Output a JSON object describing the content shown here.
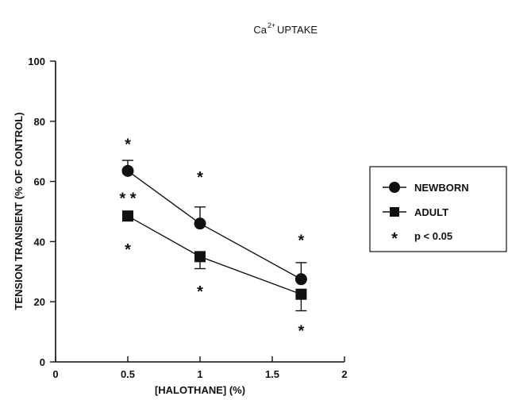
{
  "chart_data": {
    "type": "line",
    "title": "Ca²⁺UPTAKE",
    "title_base": "Ca",
    "title_sup": "2+",
    "title_rest": "UPTAKE",
    "xlabel": "[HALOTHANE] (%)",
    "ylabel": "TENSION TRANSIENT (% OF CONTROL)",
    "xlim": [
      0,
      2
    ],
    "ylim": [
      0,
      100
    ],
    "xticks": [
      "0",
      "0.5",
      "1",
      "1.5",
      "2"
    ],
    "yticks": [
      "0",
      "20",
      "40",
      "60",
      "80",
      "100"
    ],
    "xtick_values": [
      0,
      0.5,
      1,
      1.5,
      2
    ],
    "ytick_values": [
      0,
      20,
      40,
      60,
      80,
      100
    ],
    "grid": false,
    "legend_position": "right",
    "significance_symbol": "*",
    "significance_label": "p < 0.05",
    "series": [
      {
        "name": "NEWBORN",
        "marker": "circle",
        "x": [
          0.5,
          1,
          1.7
        ],
        "y": [
          63.5,
          46,
          27.5
        ],
        "error_up": [
          3.5,
          5.5,
          5.5
        ],
        "error_down": [
          0,
          0,
          0
        ]
      },
      {
        "name": "ADULT",
        "marker": "square",
        "x": [
          0.5,
          1,
          1.7
        ],
        "y": [
          48.5,
          35,
          22.5
        ],
        "error_up": [
          0,
          0,
          0
        ],
        "error_down": [
          0,
          4,
          5.5
        ]
      }
    ],
    "significance_marks": [
      {
        "x": 0.5,
        "y": 73,
        "text": "*"
      },
      {
        "x": 0.5,
        "y": 55,
        "text": "* *"
      },
      {
        "x": 0.5,
        "y": 38,
        "text": "*"
      },
      {
        "x": 1,
        "y": 62,
        "text": "*"
      },
      {
        "x": 1,
        "y": 24,
        "text": "*"
      },
      {
        "x": 1.7,
        "y": 41,
        "text": "*"
      },
      {
        "x": 1.7,
        "y": 11,
        "text": "*"
      }
    ]
  }
}
